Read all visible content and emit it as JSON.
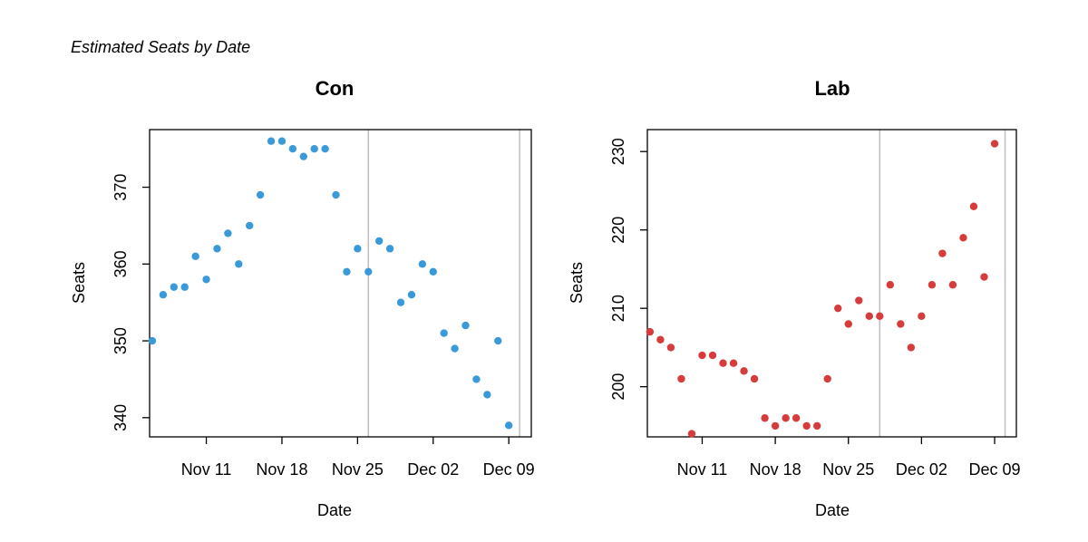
{
  "figure": {
    "title": "Estimated Seats by Date"
  },
  "chart_data": [
    {
      "type": "scatter",
      "title": "Con",
      "xlabel": "Date",
      "ylabel": "Seats",
      "color": "#3a9ad9",
      "x_ticks": [
        {
          "label": "Nov 11",
          "date": "2019-11-11"
        },
        {
          "label": "Nov 18",
          "date": "2019-11-18"
        },
        {
          "label": "Nov 25",
          "date": "2019-11-25"
        },
        {
          "label": "Dec 02",
          "date": "2019-12-02"
        },
        {
          "label": "Dec 09",
          "date": "2019-12-09"
        }
      ],
      "y_ticks": [
        340,
        350,
        360,
        370
      ],
      "xlim": [
        "2019-11-05T18:00",
        "2019-12-11T02:00"
      ],
      "ylim": [
        337.5,
        377.5
      ],
      "vlines": [
        "2019-11-26",
        "2019-12-10"
      ],
      "points": [
        {
          "x": "2019-11-06",
          "y": 350
        },
        {
          "x": "2019-11-07",
          "y": 356
        },
        {
          "x": "2019-11-08",
          "y": 357
        },
        {
          "x": "2019-11-09",
          "y": 357
        },
        {
          "x": "2019-11-10",
          "y": 361
        },
        {
          "x": "2019-11-11",
          "y": 358
        },
        {
          "x": "2019-11-12",
          "y": 362
        },
        {
          "x": "2019-11-13",
          "y": 364
        },
        {
          "x": "2019-11-14",
          "y": 360
        },
        {
          "x": "2019-11-15",
          "y": 365
        },
        {
          "x": "2019-11-16",
          "y": 369
        },
        {
          "x": "2019-11-17",
          "y": 376
        },
        {
          "x": "2019-11-18",
          "y": 376
        },
        {
          "x": "2019-11-19",
          "y": 375
        },
        {
          "x": "2019-11-20",
          "y": 374
        },
        {
          "x": "2019-11-21",
          "y": 375
        },
        {
          "x": "2019-11-22",
          "y": 375
        },
        {
          "x": "2019-11-23",
          "y": 369
        },
        {
          "x": "2019-11-24",
          "y": 359
        },
        {
          "x": "2019-11-25",
          "y": 362
        },
        {
          "x": "2019-11-26",
          "y": 359
        },
        {
          "x": "2019-11-27",
          "y": 363
        },
        {
          "x": "2019-11-28",
          "y": 362
        },
        {
          "x": "2019-11-29",
          "y": 355
        },
        {
          "x": "2019-11-30",
          "y": 356
        },
        {
          "x": "2019-12-01",
          "y": 360
        },
        {
          "x": "2019-12-02",
          "y": 359
        },
        {
          "x": "2019-12-03",
          "y": 351
        },
        {
          "x": "2019-12-04",
          "y": 349
        },
        {
          "x": "2019-12-05",
          "y": 352
        },
        {
          "x": "2019-12-06",
          "y": 345
        },
        {
          "x": "2019-12-07",
          "y": 343
        },
        {
          "x": "2019-12-08",
          "y": 350
        },
        {
          "x": "2019-12-09",
          "y": 339
        }
      ]
    },
    {
      "type": "scatter",
      "title": "Lab",
      "xlabel": "Date",
      "ylabel": "Seats",
      "color": "#d63c3c",
      "x_ticks": [
        {
          "label": "Nov 11",
          "date": "2019-11-11"
        },
        {
          "label": "Nov 18",
          "date": "2019-11-18"
        },
        {
          "label": "Nov 25",
          "date": "2019-11-25"
        },
        {
          "label": "Dec 02",
          "date": "2019-12-02"
        },
        {
          "label": "Dec 09",
          "date": "2019-12-09"
        }
      ],
      "y_ticks": [
        200,
        210,
        220,
        230
      ],
      "xlim": [
        "2019-11-05T18:00",
        "2019-12-11T02:00"
      ],
      "ylim": [
        193.6,
        232.8
      ],
      "vlines": [
        "2019-11-28",
        "2019-12-10"
      ],
      "points": [
        {
          "x": "2019-11-06",
          "y": 207
        },
        {
          "x": "2019-11-07",
          "y": 206
        },
        {
          "x": "2019-11-08",
          "y": 205
        },
        {
          "x": "2019-11-09",
          "y": 201
        },
        {
          "x": "2019-11-10",
          "y": 194
        },
        {
          "x": "2019-11-11",
          "y": 204
        },
        {
          "x": "2019-11-12",
          "y": 204
        },
        {
          "x": "2019-11-13",
          "y": 203
        },
        {
          "x": "2019-11-14",
          "y": 203
        },
        {
          "x": "2019-11-15",
          "y": 202
        },
        {
          "x": "2019-11-16",
          "y": 201
        },
        {
          "x": "2019-11-17",
          "y": 196
        },
        {
          "x": "2019-11-18",
          "y": 195
        },
        {
          "x": "2019-11-19",
          "y": 196
        },
        {
          "x": "2019-11-20",
          "y": 196
        },
        {
          "x": "2019-11-21",
          "y": 195
        },
        {
          "x": "2019-11-22",
          "y": 195
        },
        {
          "x": "2019-11-23",
          "y": 201
        },
        {
          "x": "2019-11-24",
          "y": 210
        },
        {
          "x": "2019-11-25",
          "y": 208
        },
        {
          "x": "2019-11-26",
          "y": 211
        },
        {
          "x": "2019-11-27",
          "y": 209
        },
        {
          "x": "2019-11-28",
          "y": 209
        },
        {
          "x": "2019-11-29",
          "y": 213
        },
        {
          "x": "2019-11-30",
          "y": 208
        },
        {
          "x": "2019-12-01",
          "y": 205
        },
        {
          "x": "2019-12-02",
          "y": 209
        },
        {
          "x": "2019-12-03",
          "y": 213
        },
        {
          "x": "2019-12-04",
          "y": 217
        },
        {
          "x": "2019-12-05",
          "y": 213
        },
        {
          "x": "2019-12-06",
          "y": 219
        },
        {
          "x": "2019-12-07",
          "y": 223
        },
        {
          "x": "2019-12-08",
          "y": 214
        },
        {
          "x": "2019-12-09",
          "y": 231
        }
      ]
    }
  ]
}
